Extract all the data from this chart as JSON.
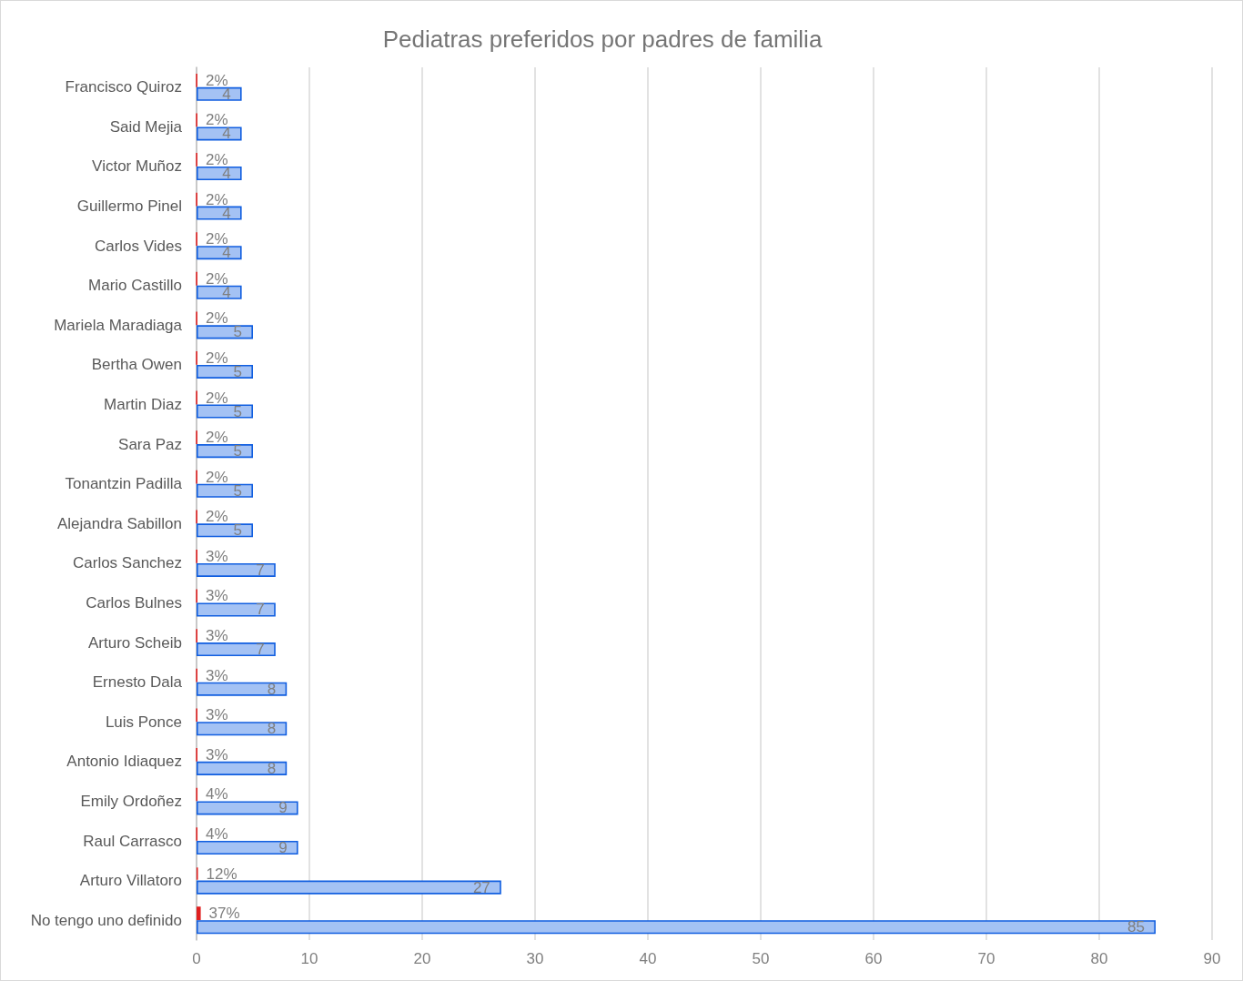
{
  "chart_data": {
    "type": "bar",
    "orientation": "horizontal",
    "title": "Pediatras preferidos por padres de familia",
    "categories": [
      "Francisco Quiroz",
      "Said Mejia",
      "Victor Muñoz",
      "Guillermo Pinel",
      "Carlos Vides",
      "Mario Castillo",
      "Mariela Maradiaga",
      "Bertha Owen",
      "Martin Diaz",
      "Sara Paz",
      "Tonantzin Padilla",
      "Alejandra Sabillon",
      "Carlos Sanchez",
      "Carlos Bulnes",
      "Arturo Scheib",
      "Ernesto Dala",
      "Luis Ponce",
      "Antonio Idiaquez",
      "Emily Ordoñez",
      "Raul Carrasco",
      "Arturo Villatoro",
      "No tengo uno definido"
    ],
    "series": [
      {
        "color": "#e02020",
        "values": [
          0.02,
          0.02,
          0.02,
          0.02,
          0.02,
          0.02,
          0.02,
          0.02,
          0.02,
          0.02,
          0.02,
          0.02,
          0.03,
          0.03,
          0.03,
          0.03,
          0.03,
          0.03,
          0.04,
          0.04,
          0.12,
          0.37
        ],
        "value_labels": [
          "2%",
          "2%",
          "2%",
          "2%",
          "2%",
          "2%",
          "2%",
          "2%",
          "2%",
          "2%",
          "2%",
          "2%",
          "3%",
          "3%",
          "3%",
          "3%",
          "3%",
          "3%",
          "4%",
          "4%",
          "12%",
          "37%"
        ]
      },
      {
        "color": "#a4c2f4",
        "values": [
          4,
          4,
          4,
          4,
          4,
          4,
          5,
          5,
          5,
          5,
          5,
          5,
          7,
          7,
          7,
          8,
          8,
          8,
          9,
          9,
          27,
          85
        ],
        "value_labels": [
          "4",
          "4",
          "4",
          "4",
          "4",
          "4",
          "5",
          "5",
          "5",
          "5",
          "5",
          "5",
          "7",
          "7",
          "7",
          "8",
          "8",
          "8",
          "9",
          "9",
          "27",
          "85"
        ]
      }
    ],
    "xlim": [
      0,
      90
    ],
    "xticks": [
      0,
      10,
      20,
      30,
      40,
      50,
      60,
      70,
      80,
      90
    ],
    "grid": "x"
  }
}
